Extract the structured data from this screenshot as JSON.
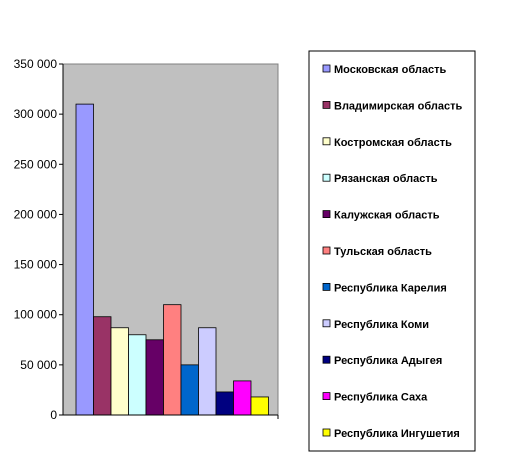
{
  "chart_data": {
    "type": "bar",
    "title": "",
    "xlabel": "",
    "ylabel": "",
    "ylim": [
      0,
      350000
    ],
    "yticks": [
      0,
      50000,
      100000,
      150000,
      200000,
      250000,
      300000,
      350000
    ],
    "ytick_labels": [
      "0",
      "50 000",
      "100 000",
      "150 000",
      "200 000",
      "250 000",
      "300 000",
      "350 000"
    ],
    "grid": false,
    "plot_background": "#c0c0c0",
    "legend_position": "right",
    "series": [
      {
        "name": "Московская область",
        "value": 310000,
        "color": "#9999ff"
      },
      {
        "name": "Владимирская область",
        "value": 98000,
        "color": "#993366"
      },
      {
        "name": "Костромская область",
        "value": 87000,
        "color": "#ffffcc"
      },
      {
        "name": "Рязанская область",
        "value": 80000,
        "color": "#ccffff"
      },
      {
        "name": "Калужская область",
        "value": 75000,
        "color": "#660066"
      },
      {
        "name": "Тульская область",
        "value": 110000,
        "color": "#ff8080"
      },
      {
        "name": "Республика Карелия",
        "value": 50000,
        "color": "#0066cc"
      },
      {
        "name": "Республика Коми",
        "value": 87000,
        "color": "#ccccff"
      },
      {
        "name": "Республика Адыгея",
        "value": 23000,
        "color": "#000080"
      },
      {
        "name": "Республика Саха",
        "value": 34000,
        "color": "#ff00ff"
      },
      {
        "name": "Республика Ингушетия",
        "value": 18000,
        "color": "#ffff00"
      }
    ]
  }
}
